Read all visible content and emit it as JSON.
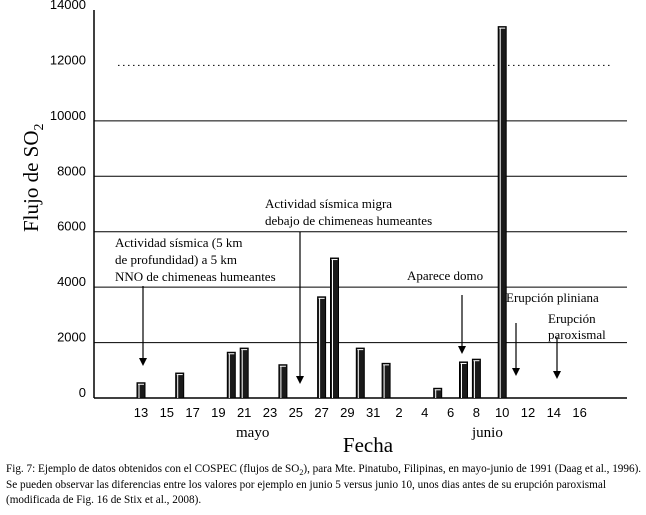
{
  "chart_data": {
    "type": "bar",
    "xlabel": "Fecha",
    "ylabel_main": "Flujo de SO",
    "ylabel_sub": "2",
    "ylim": [
      0,
      14000
    ],
    "yticks": [
      0,
      2000,
      4000,
      6000,
      8000,
      10000,
      12000,
      14000
    ],
    "grid": "horizontal lines at 2000, 4000, 6000, 8000, 10000; dotted line at 12000",
    "xtick_labels": [
      "13",
      "15",
      "17",
      "19",
      "21",
      "23",
      "25",
      "27",
      "29",
      "31",
      "2",
      "4",
      "6",
      "8",
      "10",
      "12",
      "14",
      "16"
    ],
    "month_labels": [
      "mayo",
      "junio"
    ],
    "bars": [
      {
        "date": "13 mayo",
        "value": 550
      },
      {
        "date": "16 mayo",
        "value": 900
      },
      {
        "date": "20 mayo",
        "value": 1650
      },
      {
        "date": "21 mayo",
        "value": 1800
      },
      {
        "date": "24 mayo",
        "value": 1200
      },
      {
        "date": "27 mayo",
        "value": 3650
      },
      {
        "date": "28 mayo",
        "value": 5050
      },
      {
        "date": "30 mayo",
        "value": 1800
      },
      {
        "date": "1 junio",
        "value": 1250
      },
      {
        "date": "5 junio",
        "value": 350
      },
      {
        "date": "7 junio",
        "value": 1300
      },
      {
        "date": "8 junio",
        "value": 1400
      },
      {
        "date": "10 junio",
        "value": 13400
      }
    ],
    "annotations": [
      {
        "lines": [
          "Actividad sísmica (5 km",
          "de profundidad) a 5 km",
          "NNO de chimeneas humeantes"
        ],
        "arrow_date": "13 mayo"
      },
      {
        "lines": [
          "Actividad sísmica migra",
          "debajo de chimeneas humeantes"
        ],
        "arrow_date": "26 mayo"
      },
      {
        "lines": [
          "Aparece domo"
        ],
        "arrow_date": "7 junio"
      },
      {
        "lines": [
          "Erupción pliniana"
        ],
        "arrow_date": "11 junio"
      },
      {
        "lines": [
          "Erupción",
          "paroxismal"
        ],
        "arrow_date": "14 junio"
      }
    ]
  },
  "caption": {
    "prefix": "Fig. 7:  Ejemplo de datos obtenidos con el COSPEC (flujos de SO",
    "sub": "2",
    "suffix": "), para Mte. Pinatubo, Filipinas, en mayo-junio de 1991 (Daag et al., 1996).  Se pueden observar las diferencias entre los valores por ejemplo en junio 5 versus junio 10, unos dias antes de su erupción paroxismal (modificada de Fig. 16 de Stix et al., 2008)."
  }
}
